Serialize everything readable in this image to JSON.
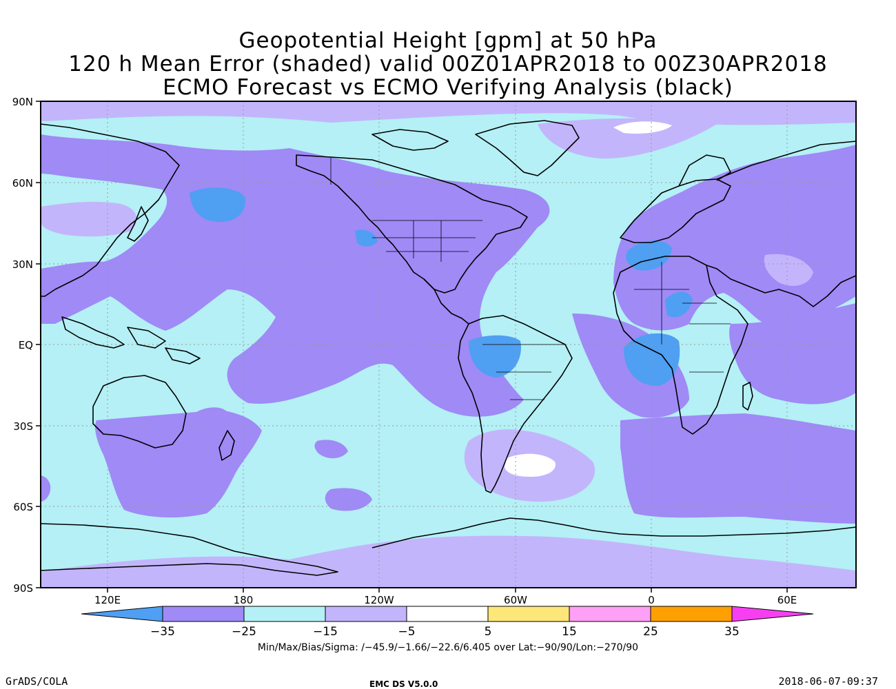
{
  "title": {
    "line1": "Geopotential Height [gpm] at 50 hPa",
    "line2": "120 h Mean Error (shaded) valid 00Z01APR2018 to 00Z30APR2018",
    "line3": "ECMO Forecast vs ECMO Verifying Analysis (black)"
  },
  "lat_labels": [
    "90N",
    "60N",
    "30N",
    "EQ",
    "30S",
    "60S",
    "90S"
  ],
  "lon_labels": [
    "120E",
    "180",
    "120W",
    "60W",
    "0",
    "60E"
  ],
  "colorbar": {
    "tick_labels": [
      "−35",
      "−25",
      "−15",
      "−5",
      "5",
      "15",
      "25",
      "35"
    ],
    "colors": [
      "#4f9ff2",
      "#9f8af6",
      "#b4f0f5",
      "#c3b5fb",
      "#ffffff",
      "#fde77a",
      "#fea0f5",
      "#fea002",
      "#f73ff2"
    ]
  },
  "stats": "Min/Max/Bias/Sigma: /−45.9/−1.66/−22.6/6.405 over Lat:−90/90/Lon:−270/90",
  "footer": {
    "left": "GrADS/COLA",
    "center": "EMC DS V5.0.0",
    "right": "2018-06-07-09:37"
  }
}
